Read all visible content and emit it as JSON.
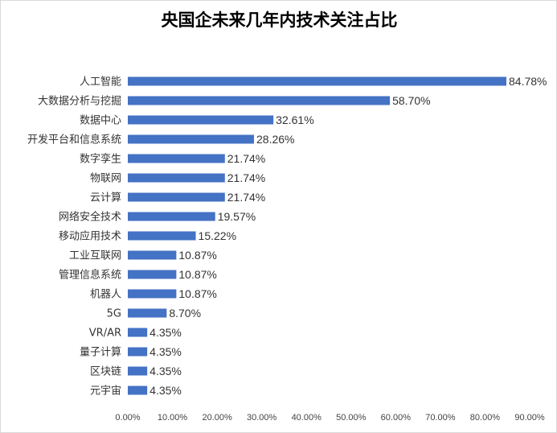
{
  "chart_data": {
    "type": "bar",
    "orientation": "horizontal",
    "title": "央国企未来几年内技术关注占比",
    "categories": [
      "人工智能",
      "大数据分析与挖掘",
      "数据中心",
      "开发平台和信息系统",
      "数字孪生",
      "物联网",
      "云计算",
      "网络安全技术",
      "移动应用技术",
      "工业互联网",
      "管理信息系统",
      "机器人",
      "5G",
      "VR/AR",
      "量子计算",
      "区块链",
      "元宇宙"
    ],
    "values": [
      84.78,
      58.7,
      32.61,
      28.26,
      21.74,
      21.74,
      21.74,
      19.57,
      15.22,
      10.87,
      10.87,
      10.87,
      8.7,
      4.35,
      4.35,
      4.35,
      4.35
    ],
    "value_labels": [
      "84.78%",
      "58.70%",
      "32.61%",
      "28.26%",
      "21.74%",
      "21.74%",
      "21.74%",
      "19.57%",
      "15.22%",
      "10.87%",
      "10.87%",
      "10.87%",
      "8.70%",
      "4.35%",
      "4.35%",
      "4.35%",
      "4.35%"
    ],
    "xlim": [
      0,
      90
    ],
    "x_ticks": [
      "0.00%",
      "10.00%",
      "20.00%",
      "30.00%",
      "40.00%",
      "50.00%",
      "60.00%",
      "70.00%",
      "80.00%",
      "90.00%"
    ],
    "xlabel": "",
    "ylabel": "",
    "grid": false,
    "legend": "none",
    "bar_color": "#4472c4"
  }
}
